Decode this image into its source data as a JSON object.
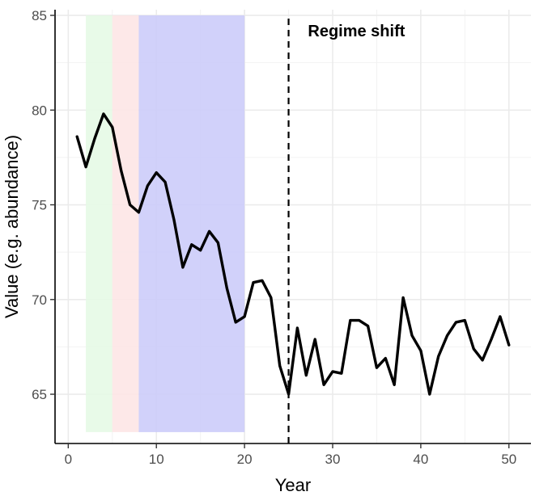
{
  "chart_data": {
    "type": "line",
    "title": "",
    "xlabel": "Year",
    "ylabel": "Value (e.g. abundance)",
    "xlim": [
      -1.5,
      52.5
    ],
    "ylim": [
      62.4,
      85.3
    ],
    "x_ticks": [
      0,
      10,
      20,
      30,
      40,
      50
    ],
    "y_ticks": [
      65,
      70,
      75,
      80,
      85
    ],
    "grid": true,
    "legend": "none",
    "series": [
      {
        "color": "#000000",
        "x": [
          1,
          2,
          3,
          4,
          5,
          6,
          7,
          8,
          9,
          10,
          11,
          12,
          13,
          14,
          15,
          16,
          17,
          18,
          19,
          20,
          21,
          22,
          23,
          24,
          25,
          26,
          27,
          28,
          29,
          30,
          31,
          32,
          33,
          34,
          35,
          36,
          37,
          38,
          39,
          40,
          41,
          42,
          43,
          44,
          45,
          46,
          47,
          48,
          49,
          50
        ],
        "values": [
          78.6,
          77.0,
          78.5,
          79.8,
          79.1,
          76.8,
          75.0,
          74.6,
          76.0,
          76.7,
          76.2,
          74.2,
          71.7,
          72.9,
          72.6,
          73.6,
          73.0,
          70.6,
          68.8,
          69.1,
          70.9,
          71.0,
          70.1,
          66.5,
          65.0,
          68.5,
          66.0,
          67.9,
          65.5,
          66.2,
          66.1,
          68.9,
          68.9,
          68.6,
          66.4,
          66.9,
          65.5,
          70.1,
          68.1,
          67.3,
          65.0,
          67.0,
          68.1,
          68.8,
          68.9,
          67.4,
          66.8,
          67.9,
          69.1,
          67.6
        ]
      }
    ],
    "shaded_regions": [
      {
        "x_start": 2,
        "x_end": 5,
        "y_start": 63,
        "y_end": 85,
        "color": "#e5fae5"
      },
      {
        "x_start": 5,
        "x_end": 8,
        "y_start": 63,
        "y_end": 85,
        "color": "#fde5e5"
      },
      {
        "x_start": 8,
        "x_end": 20,
        "y_start": 63,
        "y_end": 85,
        "color": "#ccccfa"
      }
    ],
    "reference_lines": [
      {
        "x": 25,
        "y_start": 62.4,
        "y_end": 85,
        "style": "dashed",
        "color": "#000000"
      }
    ],
    "annotations": [
      {
        "text": "Regime shift",
        "x": 32.7,
        "y": 84.2
      }
    ]
  }
}
